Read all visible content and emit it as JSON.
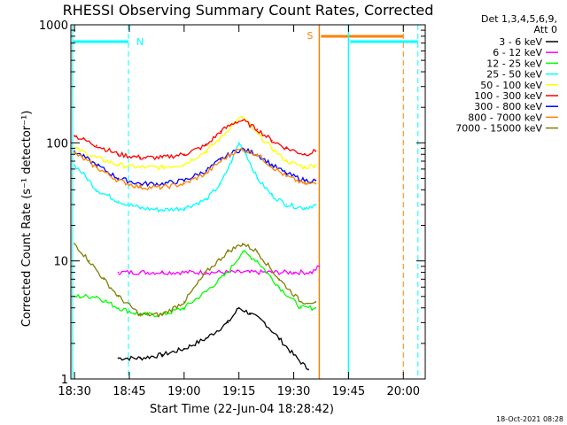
{
  "chart_data": {
    "type": "line",
    "title": "RHESSI Observing Summary Count Rates, Corrected",
    "xlabel": "Start Time (22-Jun-04 18:28:42)",
    "ylabel": "Corrected Count Rate (s⁻¹ detector⁻¹)",
    "y_scale": "log",
    "ylim": [
      1,
      1000
    ],
    "x_range_minutes": [
      "18:29",
      "20:06"
    ],
    "x_ticks": [
      "18:30",
      "18:45",
      "19:00",
      "19:15",
      "19:30",
      "19:45",
      "20:00"
    ],
    "y_ticks": [
      "1",
      "10",
      "100",
      "1000"
    ],
    "legend": {
      "header": [
        "Det 1,3,4,5,6,9,",
        "Att 0"
      ],
      "placement": "right"
    },
    "series": [
      {
        "name": "3 - 6 keV",
        "color": "#000000",
        "x": [
          "18:42",
          "18:48",
          "18:54",
          "19:00",
          "19:06",
          "19:12",
          "19:15",
          "19:18",
          "19:22",
          "19:26",
          "19:30",
          "19:34"
        ],
        "y": [
          1.5,
          1.5,
          1.6,
          1.8,
          2.2,
          3.0,
          4.0,
          3.6,
          3.0,
          2.2,
          1.6,
          1.2
        ]
      },
      {
        "name": "6 - 12 keV",
        "color": "#ff00ff",
        "x": [
          "18:42",
          "18:48",
          "18:54",
          "19:00",
          "19:06",
          "19:12",
          "19:18",
          "19:24",
          "19:30",
          "19:35",
          "19:37"
        ],
        "y": [
          8.0,
          8.0,
          8.0,
          8.0,
          8.0,
          8.0,
          8.0,
          8.0,
          8.0,
          8.0,
          9.0
        ]
      },
      {
        "name": "12 - 25 keV",
        "color": "#00ff00",
        "x": [
          "18:30",
          "18:36",
          "18:42",
          "18:48",
          "18:54",
          "19:00",
          "19:06",
          "19:12",
          "19:16",
          "19:20",
          "19:26",
          "19:32",
          "19:36"
        ],
        "y": [
          5.0,
          5.0,
          4.0,
          3.5,
          3.5,
          4.0,
          5.5,
          8.0,
          12.0,
          10.0,
          6.0,
          4.0,
          4.0
        ]
      },
      {
        "name": "25 - 50 keV",
        "color": "#00ffff",
        "x": [
          "18:30",
          "18:33",
          "18:36",
          "18:42",
          "18:48",
          "18:54",
          "19:00",
          "19:06",
          "19:10",
          "19:13",
          "19:15",
          "19:17",
          "19:20",
          "19:24",
          "19:28",
          "19:33",
          "19:36"
        ],
        "y": [
          65,
          52,
          40,
          32,
          28,
          27,
          28,
          33,
          45,
          70,
          100,
          80,
          50,
          36,
          30,
          28,
          30
        ]
      },
      {
        "name": "50 - 100 keV",
        "color": "#ffff00",
        "x": [
          "18:30",
          "18:36",
          "18:42",
          "18:48",
          "18:54",
          "19:00",
          "19:06",
          "19:10",
          "19:14",
          "19:16",
          "19:20",
          "19:24",
          "19:28",
          "19:33",
          "19:36"
        ],
        "y": [
          90,
          75,
          65,
          62,
          62,
          66,
          85,
          110,
          150,
          165,
          120,
          90,
          70,
          62,
          65
        ]
      },
      {
        "name": "100 - 300 keV",
        "color": "#ff0000",
        "x": [
          "18:30",
          "18:36",
          "18:42",
          "18:48",
          "18:54",
          "19:00",
          "19:06",
          "19:10",
          "19:14",
          "19:16",
          "19:20",
          "19:24",
          "19:28",
          "19:33",
          "19:36"
        ],
        "y": [
          115,
          95,
          80,
          75,
          75,
          80,
          95,
          125,
          150,
          155,
          130,
          105,
          90,
          80,
          85
        ]
      },
      {
        "name": "300 - 800 keV",
        "color": "#0000ff",
        "x": [
          "18:30",
          "18:36",
          "18:42",
          "18:48",
          "18:54",
          "19:00",
          "19:06",
          "19:10",
          "19:14",
          "19:16",
          "19:20",
          "19:24",
          "19:28",
          "19:33",
          "19:36"
        ],
        "y": [
          85,
          65,
          50,
          45,
          45,
          48,
          58,
          72,
          85,
          88,
          80,
          65,
          55,
          48,
          48
        ]
      },
      {
        "name": "800 - 7000 keV",
        "color": "#ff8000",
        "x": [
          "18:30",
          "18:36",
          "18:42",
          "18:48",
          "18:54",
          "19:00",
          "19:06",
          "19:10",
          "19:14",
          "19:16",
          "19:20",
          "19:24",
          "19:28",
          "19:33",
          "19:36"
        ],
        "y": [
          82,
          62,
          48,
          42,
          42,
          45,
          55,
          70,
          85,
          88,
          80,
          63,
          52,
          45,
          45
        ]
      },
      {
        "name": "7000 - 15000 keV",
        "color": "#808000",
        "x": [
          "18:30",
          "18:34",
          "18:38",
          "18:42",
          "18:48",
          "18:54",
          "19:00",
          "19:06",
          "19:12",
          "19:16",
          "19:20",
          "19:26",
          "19:32",
          "19:36"
        ],
        "y": [
          14,
          10,
          7.0,
          5.0,
          3.5,
          3.5,
          4.5,
          8.0,
          12.0,
          14.0,
          12.0,
          7.0,
          4.5,
          4.5
        ]
      }
    ],
    "flags": {
      "night_label": "N",
      "saa_label": "S"
    }
  },
  "footer": {
    "timestamp": "18-Oct-2021 08:28"
  }
}
